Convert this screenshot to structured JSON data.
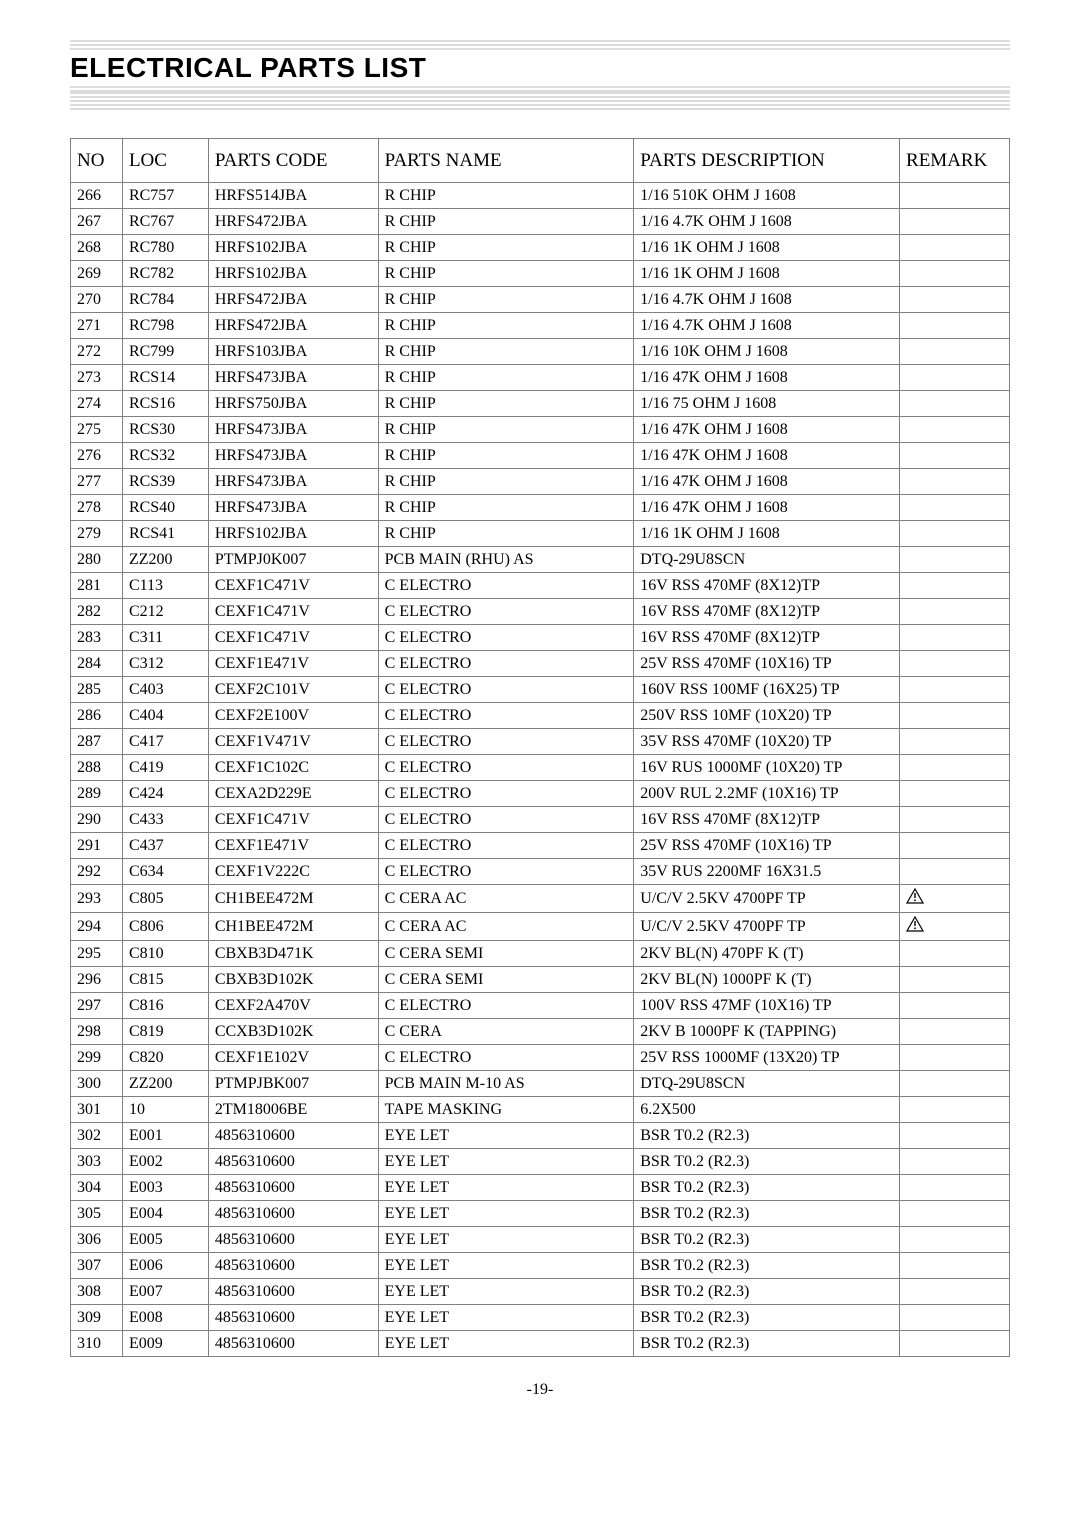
{
  "title": "ELECTRICAL PARTS LIST",
  "footer": "-19-",
  "columns": {
    "no": "NO",
    "loc": "LOC",
    "code": "PARTS CODE",
    "name": "PARTS NAME",
    "desc": "PARTS DESCRIPTION",
    "remark": "REMARK"
  },
  "warn_icon_title": "warning",
  "rows": [
    {
      "no": "266",
      "loc": "RC757",
      "code": "HRFS514JBA",
      "name": "R CHIP",
      "desc": "1/16 510K OHM J 1608",
      "remark": ""
    },
    {
      "no": "267",
      "loc": "RC767",
      "code": "HRFS472JBA",
      "name": "R CHIP",
      "desc": "1/16  4.7K OHM J 1608",
      "remark": ""
    },
    {
      "no": "268",
      "loc": "RC780",
      "code": "HRFS102JBA",
      "name": "R CHIP",
      "desc": "1/16  1K OHM J 1608",
      "remark": ""
    },
    {
      "no": "269",
      "loc": "RC782",
      "code": "HRFS102JBA",
      "name": "R CHIP",
      "desc": "1/16  1K OHM J 1608",
      "remark": ""
    },
    {
      "no": "270",
      "loc": "RC784",
      "code": "HRFS472JBA",
      "name": "R CHIP",
      "desc": "1/16  4.7K OHM J 1608",
      "remark": ""
    },
    {
      "no": "271",
      "loc": "RC798",
      "code": "HRFS472JBA",
      "name": "R CHIP",
      "desc": "1/16  4.7K OHM J 1608",
      "remark": ""
    },
    {
      "no": "272",
      "loc": "RC799",
      "code": "HRFS103JBA",
      "name": "R CHIP",
      "desc": "1/16  10K OHM J 1608",
      "remark": ""
    },
    {
      "no": "273",
      "loc": "RCS14",
      "code": "HRFS473JBA",
      "name": "R CHIP",
      "desc": "1/16  47K OHM J 1608",
      "remark": ""
    },
    {
      "no": "274",
      "loc": "RCS16",
      "code": "HRFS750JBA",
      "name": "R CHIP",
      "desc": "1/16 75 OHM J 1608",
      "remark": ""
    },
    {
      "no": "275",
      "loc": "RCS30",
      "code": "HRFS473JBA",
      "name": "R CHIP",
      "desc": "1/16  47K OHM J 1608",
      "remark": ""
    },
    {
      "no": "276",
      "loc": "RCS32",
      "code": "HRFS473JBA",
      "name": "R CHIP",
      "desc": "1/16  47K OHM J 1608",
      "remark": ""
    },
    {
      "no": "277",
      "loc": "RCS39",
      "code": "HRFS473JBA",
      "name": "R CHIP",
      "desc": "1/16  47K OHM J 1608",
      "remark": ""
    },
    {
      "no": "278",
      "loc": "RCS40",
      "code": "HRFS473JBA",
      "name": "R CHIP",
      "desc": "1/16  47K OHM J 1608",
      "remark": ""
    },
    {
      "no": "279",
      "loc": "RCS41",
      "code": "HRFS102JBA",
      "name": "R CHIP",
      "desc": "1/16  1K OHM J 1608",
      "remark": ""
    },
    {
      "no": "280",
      "loc": "ZZ200",
      "code": "PTMPJ0K007",
      "name": "PCB MAIN (RHU) AS",
      "desc": "DTQ-29U8SCN",
      "remark": ""
    },
    {
      "no": "281",
      "loc": "C113",
      "code": "CEXF1C471V",
      "name": "C ELECTRO",
      "desc": "16V RSS 470MF (8X12)TP",
      "remark": ""
    },
    {
      "no": "282",
      "loc": "C212",
      "code": "CEXF1C471V",
      "name": "C ELECTRO",
      "desc": "16V RSS 470MF (8X12)TP",
      "remark": ""
    },
    {
      "no": "283",
      "loc": "C311",
      "code": "CEXF1C471V",
      "name": "C ELECTRO",
      "desc": "16V RSS 470MF (8X12)TP",
      "remark": ""
    },
    {
      "no": "284",
      "loc": "C312",
      "code": "CEXF1E471V",
      "name": "C ELECTRO",
      "desc": "25V RSS 470MF (10X16) TP",
      "remark": ""
    },
    {
      "no": "285",
      "loc": "C403",
      "code": "CEXF2C101V",
      "name": "C ELECTRO",
      "desc": "160V RSS 100MF (16X25) TP",
      "remark": ""
    },
    {
      "no": "286",
      "loc": "C404",
      "code": "CEXF2E100V",
      "name": "C ELECTRO",
      "desc": "250V RSS 10MF (10X20) TP",
      "remark": ""
    },
    {
      "no": "287",
      "loc": "C417",
      "code": "CEXF1V471V",
      "name": "C ELECTRO",
      "desc": "35V RSS 470MF (10X20) TP",
      "remark": ""
    },
    {
      "no": "288",
      "loc": "C419",
      "code": "CEXF1C102C",
      "name": "C ELECTRO",
      "desc": "16V RUS 1000MF (10X20) TP",
      "remark": ""
    },
    {
      "no": "289",
      "loc": "C424",
      "code": "CEXA2D229E",
      "name": "C ELECTRO",
      "desc": "200V RUL 2.2MF (10X16) TP",
      "remark": ""
    },
    {
      "no": "290",
      "loc": "C433",
      "code": "CEXF1C471V",
      "name": "C ELECTRO",
      "desc": "16V RSS 470MF (8X12)TP",
      "remark": ""
    },
    {
      "no": "291",
      "loc": "C437",
      "code": "CEXF1E471V",
      "name": "C ELECTRO",
      "desc": "25V RSS 470MF (10X16) TP",
      "remark": ""
    },
    {
      "no": "292",
      "loc": "C634",
      "code": "CEXF1V222C",
      "name": "C ELECTRO",
      "desc": "35V RUS 2200MF 16X31.5",
      "remark": ""
    },
    {
      "no": "293",
      "loc": "C805",
      "code": "CH1BEE472M",
      "name": "C CERA AC",
      "desc": "U/C/V 2.5KV 4700PF TP",
      "remark": "WARN"
    },
    {
      "no": "294",
      "loc": "C806",
      "code": "CH1BEE472M",
      "name": "C CERA AC",
      "desc": "U/C/V 2.5KV 4700PF TP",
      "remark": "WARN"
    },
    {
      "no": "295",
      "loc": "C810",
      "code": "CBXB3D471K",
      "name": "C CERA SEMI",
      "desc": "2KV BL(N) 470PF K (T)",
      "remark": ""
    },
    {
      "no": "296",
      "loc": "C815",
      "code": "CBXB3D102K",
      "name": "C CERA SEMI",
      "desc": "2KV BL(N) 1000PF K (T)",
      "remark": ""
    },
    {
      "no": "297",
      "loc": "C816",
      "code": "CEXF2A470V",
      "name": "C ELECTRO",
      "desc": "100V RSS 47MF (10X16) TP",
      "remark": ""
    },
    {
      "no": "298",
      "loc": "C819",
      "code": "CCXB3D102K",
      "name": "C CERA",
      "desc": "2KV B 1000PF K (TAPPING)",
      "remark": ""
    },
    {
      "no": "299",
      "loc": "C820",
      "code": "CEXF1E102V",
      "name": "C ELECTRO",
      "desc": "25V RSS 1000MF (13X20) TP",
      "remark": ""
    },
    {
      "no": "300",
      "loc": "ZZ200",
      "code": "PTMPJBK007",
      "name": "PCB MAIN M-10 AS",
      "desc": "DTQ-29U8SCN",
      "remark": ""
    },
    {
      "no": "301",
      "loc": "10",
      "code": "2TM18006BE",
      "name": "TAPE MASKING",
      "desc": "6.2X500",
      "remark": ""
    },
    {
      "no": "302",
      "loc": "E001",
      "code": "4856310600",
      "name": "EYE LET",
      "desc": "BSR T0.2 (R2.3)",
      "remark": ""
    },
    {
      "no": "303",
      "loc": "E002",
      "code": "4856310600",
      "name": "EYE LET",
      "desc": "BSR T0.2 (R2.3)",
      "remark": ""
    },
    {
      "no": "304",
      "loc": "E003",
      "code": "4856310600",
      "name": "EYE LET",
      "desc": "BSR T0.2 (R2.3)",
      "remark": ""
    },
    {
      "no": "305",
      "loc": "E004",
      "code": "4856310600",
      "name": "EYE LET",
      "desc": "BSR T0.2 (R2.3)",
      "remark": ""
    },
    {
      "no": "306",
      "loc": "E005",
      "code": "4856310600",
      "name": "EYE LET",
      "desc": "BSR T0.2 (R2.3)",
      "remark": ""
    },
    {
      "no": "307",
      "loc": "E006",
      "code": "4856310600",
      "name": "EYE LET",
      "desc": "BSR T0.2 (R2.3)",
      "remark": ""
    },
    {
      "no": "308",
      "loc": "E007",
      "code": "4856310600",
      "name": "EYE LET",
      "desc": "BSR T0.2 (R2.3)",
      "remark": ""
    },
    {
      "no": "309",
      "loc": "E008",
      "code": "4856310600",
      "name": "EYE LET",
      "desc": "BSR T0.2 (R2.3)",
      "remark": ""
    },
    {
      "no": "310",
      "loc": "E009",
      "code": "4856310600",
      "name": "EYE LET",
      "desc": "BSR T0.2 (R2.3)",
      "remark": ""
    }
  ]
}
